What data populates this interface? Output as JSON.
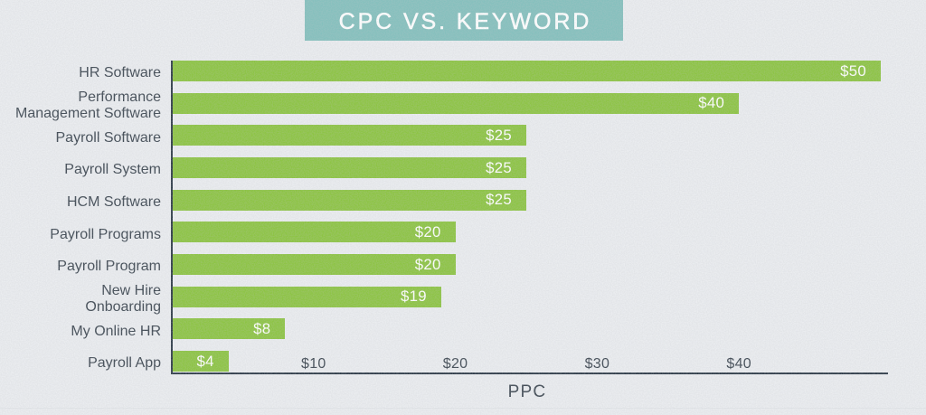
{
  "title": "CPC VS. KEYWORD",
  "chart_data": {
    "type": "bar",
    "orientation": "horizontal",
    "title": "CPC VS. KEYWORD",
    "categories": [
      "HR Software",
      "Performance Management Software",
      "Payroll Software",
      "Payroll System",
      "HCM Software",
      "Payroll Programs",
      "Payroll Program",
      "New Hire Onboarding",
      "My Online HR",
      "Payroll App"
    ],
    "category_display": [
      [
        "HR Software"
      ],
      [
        "Performance",
        "Management Software"
      ],
      [
        "Payroll Software"
      ],
      [
        "Payroll System"
      ],
      [
        "HCM Software"
      ],
      [
        "Payroll Programs"
      ],
      [
        "Payroll Program"
      ],
      [
        "New Hire",
        "Onboarding"
      ],
      [
        "My Online HR"
      ],
      [
        "Payroll App"
      ]
    ],
    "values": [
      50,
      40,
      25,
      25,
      25,
      20,
      20,
      19,
      8,
      4
    ],
    "value_labels": [
      "$50",
      "$40",
      "$25",
      "$25",
      "$25",
      "$20",
      "$20",
      "$19",
      "$8",
      "$4"
    ],
    "x_ticks": [
      {
        "value": 10,
        "label": "$10"
      },
      {
        "value": 20,
        "label": "$20"
      },
      {
        "value": 30,
        "label": "$30"
      },
      {
        "value": 40,
        "label": "$40"
      }
    ],
    "xlabel": "PPC",
    "xlim": [
      0,
      50.5
    ],
    "grid": false,
    "legend": false
  },
  "colors": {
    "background": "#ebedf0",
    "title_bg": "#84c0bd",
    "title_text": "#ffffff",
    "bar": "#8cc442",
    "bar_value_text": "#ffffff",
    "label_text": "#3d4751",
    "axis": "#2d3a47"
  }
}
